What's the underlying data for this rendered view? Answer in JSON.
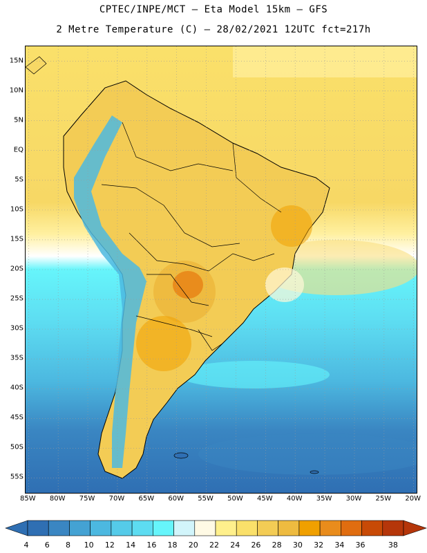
{
  "header": {
    "line1": "CPTEC/INPE/MCT –  Eta Model 15km – GFS",
    "line2": "2 Metre Temperature (C) – 28/02/2021 12UTC fct=217h"
  },
  "map": {
    "lat_labels": [
      "15N",
      "10N",
      "5N",
      "EQ",
      "5S",
      "10S",
      "15S",
      "20S",
      "25S",
      "30S",
      "35S",
      "40S",
      "45S",
      "50S",
      "55S"
    ],
    "lat_values": [
      15,
      10,
      5,
      0,
      -5,
      -10,
      -15,
      -20,
      -25,
      -30,
      -35,
      -40,
      -45,
      -50,
      -55
    ],
    "lon_labels": [
      "85W",
      "80W",
      "75W",
      "70W",
      "65W",
      "60W",
      "55W",
      "50W",
      "45W",
      "40W",
      "35W",
      "30W",
      "25W",
      "20W"
    ],
    "lon_values": [
      -85,
      -80,
      -75,
      -70,
      -65,
      -60,
      -55,
      -50,
      -45,
      -40,
      -35,
      -30,
      -25,
      -20
    ],
    "lat_range": [
      -57.5,
      17.5
    ],
    "lon_range": [
      -85.5,
      -19.5
    ]
  },
  "colorbar": {
    "labels": [
      "4",
      "6",
      "8",
      "10",
      "12",
      "14",
      "16",
      "18",
      "20",
      "22",
      "24",
      "26",
      "28",
      "30",
      "32",
      "34",
      "36",
      "38"
    ],
    "colors": [
      "#2f6fb3",
      "#3a86c2",
      "#44a2d3",
      "#4cb8e0",
      "#55cbe9",
      "#5ddcf1",
      "#66f5fb",
      "#d2f5fb",
      "#fffae5",
      "#fff08c",
      "#fae06a",
      "#f3cc55",
      "#eebb40",
      "#f0a000",
      "#e98c1c",
      "#e06d10",
      "#c84a06",
      "#b5360a"
    ]
  }
}
